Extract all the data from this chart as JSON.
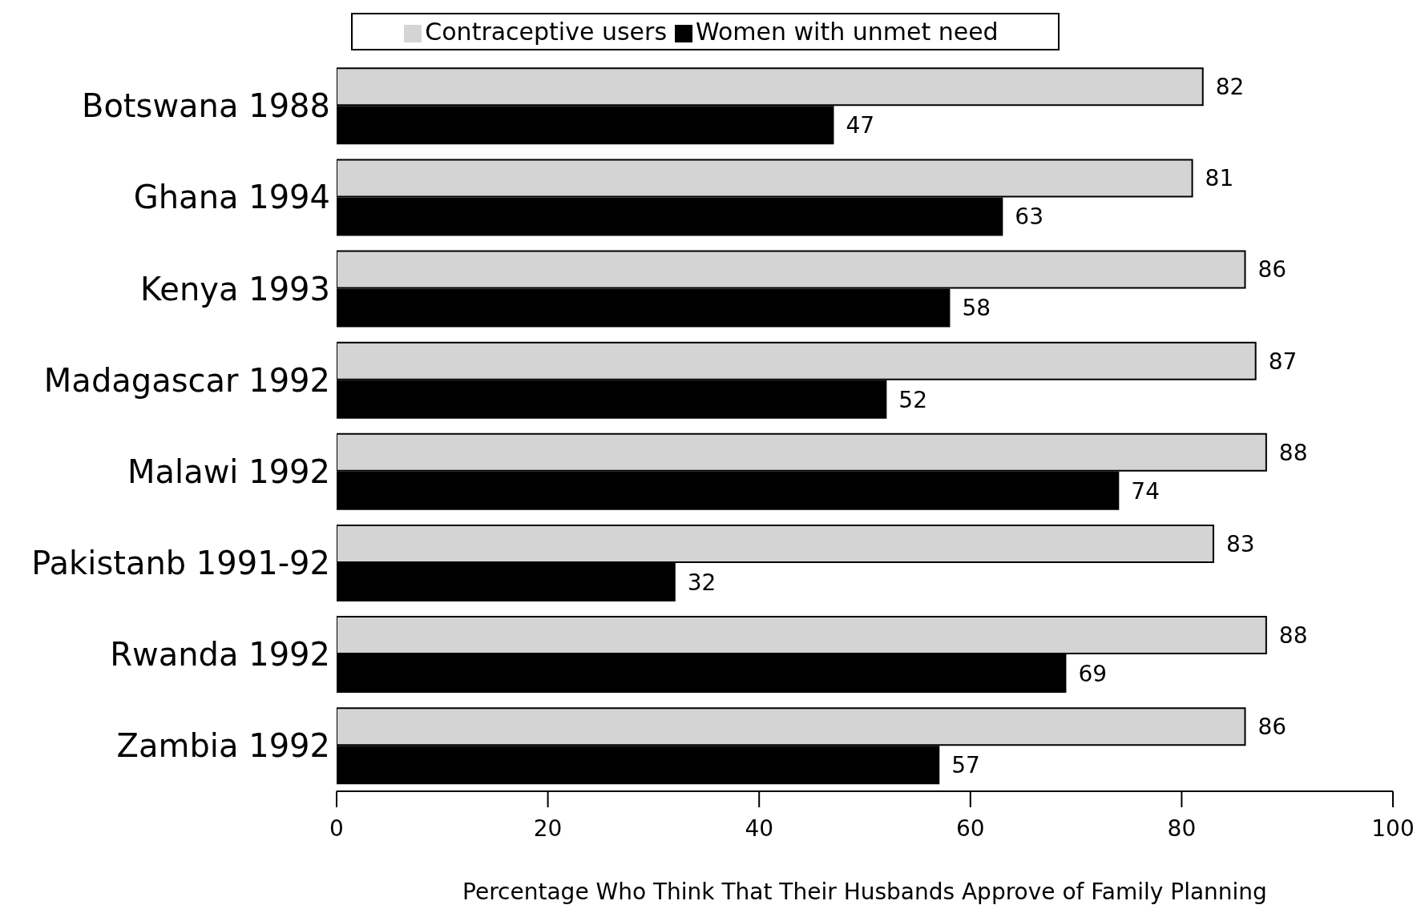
{
  "chart_data": {
    "type": "bar",
    "orientation": "horizontal",
    "xlabel": "Percentage Who Think That Their Husbands Approve of Family Planning",
    "categories": [
      "Botswana 1988",
      "Ghana 1994",
      "Kenya 1993",
      "Madagascar 1992",
      "Malawi 1992",
      "Pakistanb 1991-92",
      "Rwanda 1992",
      "Zambia 1992"
    ],
    "series": [
      {
        "name": "Contraceptive users",
        "color": "#d4d4d4",
        "values": [
          82,
          81,
          86,
          87,
          88,
          83,
          88,
          86
        ]
      },
      {
        "name": "Women with unmet need",
        "color": "#000000",
        "values": [
          47,
          63,
          58,
          52,
          74,
          32,
          69,
          57
        ]
      }
    ],
    "xlim": [
      0,
      100
    ],
    "xticks": [
      0,
      20,
      40,
      60,
      80,
      100
    ],
    "data_labels": true,
    "legend": "top",
    "grid": false
  }
}
